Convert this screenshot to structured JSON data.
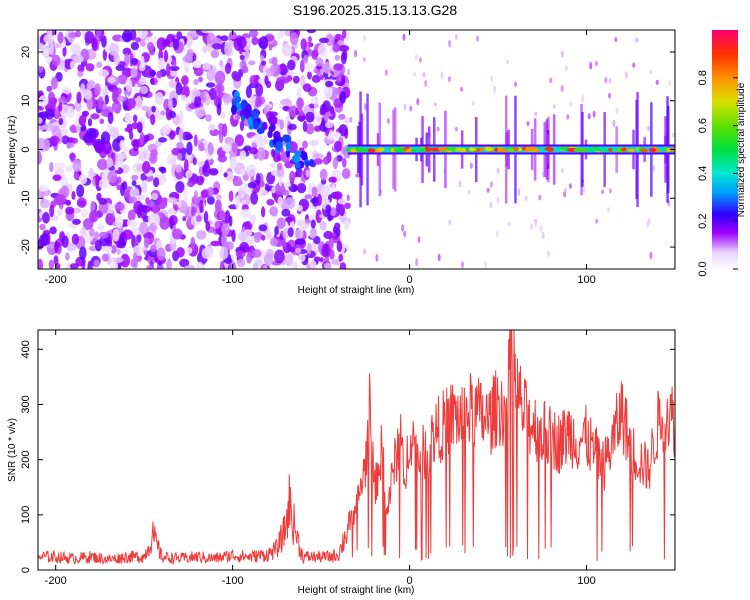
{
  "title": "S196.2025.315.13.13.G28",
  "chart_data": [
    {
      "type": "heatmap",
      "name": "spectrogram",
      "xlabel": "Height of straight line (km)",
      "ylabel": "Frequency (Hz)",
      "xlim": [
        -210,
        150
      ],
      "ylim": [
        -24.5,
        24.5
      ],
      "xticks": [
        -200,
        -100,
        0,
        100
      ],
      "yticks": [
        -20,
        -10,
        0,
        10,
        20
      ],
      "noise_region_x": [
        -210,
        -35
      ],
      "signal_region_x": [
        -35,
        150
      ],
      "signal_band_frequency": 0,
      "colorbar": {
        "label": "Normalized spectral amplitude",
        "range": [
          0,
          1
        ],
        "ticks": [
          0.0,
          0.2,
          0.4,
          0.6,
          0.8
        ],
        "tick_labels": [
          "0.0",
          "0.2",
          "0.4",
          "0.6",
          "0.8"
        ]
      }
    },
    {
      "type": "line",
      "name": "snr",
      "xlabel": "Height of straight line (km)",
      "ylabel": "SNR (10 * v/v)",
      "xlim": [
        -210,
        150
      ],
      "ylim": [
        0,
        435
      ],
      "xticks": [
        -200,
        -100,
        0,
        100
      ],
      "yticks": [
        0,
        100,
        200,
        300,
        400
      ],
      "color": "#ee3b3b",
      "series": [
        {
          "name": "SNR",
          "x": [
            -210,
            -200,
            -190,
            -180,
            -170,
            -160,
            -150,
            -145,
            -140,
            -130,
            -120,
            -110,
            -100,
            -90,
            -80,
            -75,
            -70,
            -68,
            -66,
            -64,
            -62,
            -60,
            -55,
            -50,
            -45,
            -40,
            -35,
            -32,
            -30,
            -25,
            -22,
            -20,
            -15,
            -13,
            -10,
            -5,
            -3,
            0,
            5,
            10,
            15,
            20,
            25,
            30,
            35,
            40,
            45,
            50,
            55,
            58,
            60,
            65,
            70,
            75,
            80,
            85,
            90,
            95,
            100,
            105,
            110,
            115,
            120,
            125,
            130,
            135,
            140,
            145,
            150
          ],
          "y": [
            25,
            25,
            22,
            25,
            20,
            25,
            25,
            65,
            25,
            22,
            25,
            22,
            28,
            25,
            30,
            40,
            80,
            130,
            95,
            70,
            40,
            25,
            25,
            25,
            25,
            30,
            80,
            100,
            115,
            190,
            320,
            140,
            230,
            100,
            165,
            250,
            140,
            260,
            200,
            220,
            250,
            265,
            280,
            275,
            290,
            280,
            270,
            300,
            290,
            430,
            330,
            280,
            265,
            250,
            240,
            230,
            250,
            235,
            240,
            210,
            190,
            235,
            290,
            220,
            200,
            180,
            260,
            290,
            270
          ]
        }
      ]
    }
  ]
}
